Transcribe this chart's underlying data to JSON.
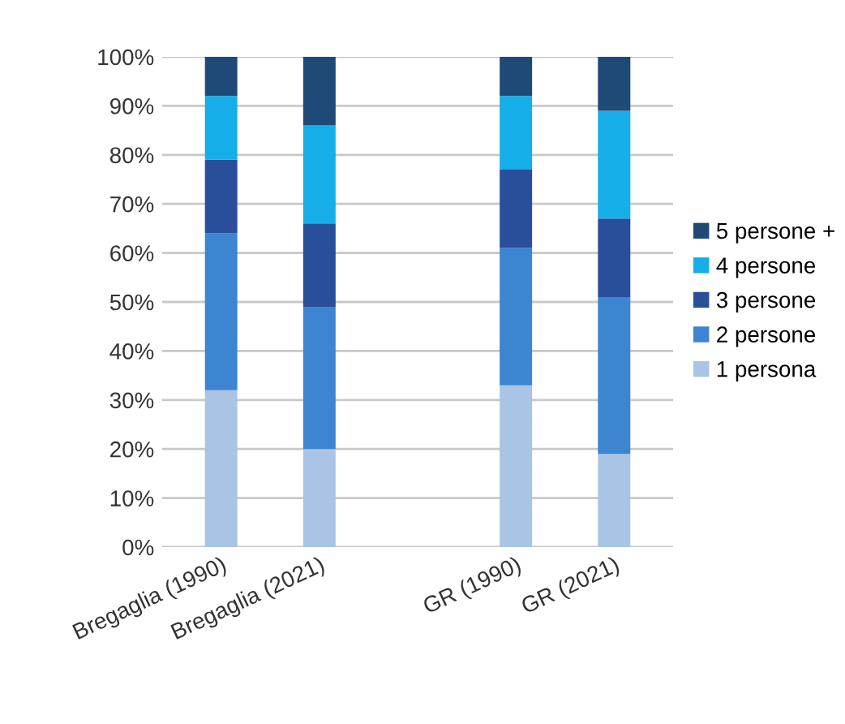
{
  "chart_data": {
    "type": "bar",
    "stacked": true,
    "categories": [
      "Bregaglia (1990)",
      "Bregaglia (2021)",
      null,
      "GR (1990)",
      "GR (2021)"
    ],
    "series": [
      {
        "name": "1 persona",
        "color": "#a9c4e4",
        "values": [
          32,
          20,
          null,
          33,
          19
        ]
      },
      {
        "name": "2 persone",
        "color": "#3d85d1",
        "values": [
          32,
          29,
          null,
          28,
          32
        ]
      },
      {
        "name": "3 persone",
        "color": "#2a4f9a",
        "values": [
          15,
          17,
          null,
          16,
          16
        ]
      },
      {
        "name": "4 persone",
        "color": "#15aee8",
        "values": [
          13,
          20,
          null,
          15,
          22
        ]
      },
      {
        "name": "5 persone +",
        "color": "#1f4a78",
        "values": [
          8,
          14,
          null,
          8,
          11
        ]
      }
    ],
    "ylim": [
      0,
      100
    ],
    "yticks": [
      {
        "value": 0,
        "label": "0%"
      },
      {
        "value": 10,
        "label": "10%"
      },
      {
        "value": 20,
        "label": "20%"
      },
      {
        "value": 30,
        "label": "30%"
      },
      {
        "value": 40,
        "label": "40%"
      },
      {
        "value": 50,
        "label": "50%"
      },
      {
        "value": 60,
        "label": "60%"
      },
      {
        "value": 70,
        "label": "70%"
      },
      {
        "value": 80,
        "label": "80%"
      },
      {
        "value": 90,
        "label": "90%"
      },
      {
        "value": 100,
        "label": "100%"
      }
    ],
    "grid": "y",
    "legend": "right"
  }
}
